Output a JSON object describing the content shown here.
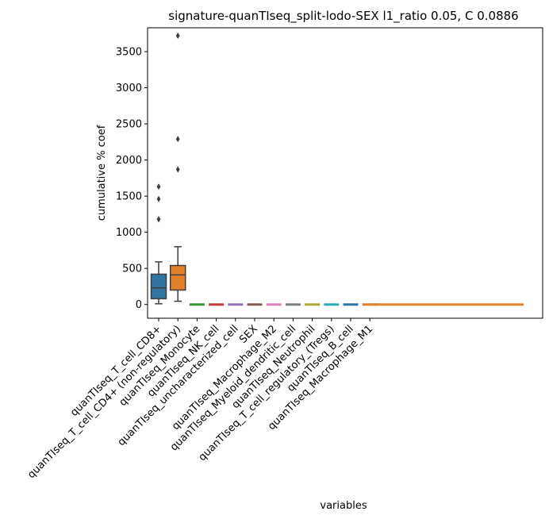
{
  "chart_data": {
    "type": "box",
    "title": "signature-quanTIseq_split-lodo-SEX l1_ratio 0.05, C 0.0886",
    "xlabel": "variables",
    "ylabel": "cumulative % coef",
    "ylim": [
      -190,
      3830
    ],
    "yticks": [
      0,
      500,
      1000,
      1500,
      2000,
      2500,
      3000,
      3500
    ],
    "grid": false,
    "categories": [
      "quanTIseq_T_cell_CD8+",
      "quanTIseq_T_cell_CD4+ (non-regulatory)",
      "quanTIseq_Monocyte",
      "quanTIseq_NK_cell",
      "quanTIseq_uncharacterized_cell",
      "SEX",
      "quanTIseq_Macrophage_M2",
      "quanTIseq_Myeloid_dendritic_cell",
      "quanTIseq_Neutrophil",
      "quanTIseq_T_cell_regulatory_(Tregs)",
      "quanTIseq_B_cell",
      "quanTIseq_Macrophage_M1"
    ],
    "boxes": [
      {
        "category": "quanTIseq_T_cell_CD8+",
        "color": "#3274a1",
        "whislo": 10,
        "q1": 80,
        "median": 230,
        "q3": 420,
        "whishi": 590,
        "fliers": [
          1180,
          1460,
          1630
        ]
      },
      {
        "category": "quanTIseq_T_cell_CD4+ (non-regulatory)",
        "color": "#e1812c",
        "whislo": 45,
        "q1": 200,
        "median": 410,
        "q3": 540,
        "whishi": 800,
        "fliers": [
          1870,
          2290,
          3720
        ]
      },
      {
        "category": "quanTIseq_Monocyte",
        "color": "#3a923a",
        "whislo": 0,
        "q1": 0,
        "median": 0,
        "q3": 0,
        "whishi": 0,
        "fliers": []
      },
      {
        "category": "quanTIseq_NK_cell",
        "color": "#c03d3e",
        "whislo": 0,
        "q1": 0,
        "median": 0,
        "q3": 0,
        "whishi": 0,
        "fliers": []
      },
      {
        "category": "quanTIseq_uncharacterized_cell",
        "color": "#9372b2",
        "whislo": 0,
        "q1": 0,
        "median": 0,
        "q3": 0,
        "whishi": 0,
        "fliers": []
      },
      {
        "category": "SEX",
        "color": "#845b53",
        "whislo": 0,
        "q1": 0,
        "median": 0,
        "q3": 0,
        "whishi": 0,
        "fliers": []
      },
      {
        "category": "quanTIseq_Macrophage_M2",
        "color": "#d684bd",
        "whislo": 0,
        "q1": 0,
        "median": 0,
        "q3": 0,
        "whishi": 0,
        "fliers": []
      },
      {
        "category": "quanTIseq_Myeloid_dendritic_cell",
        "color": "#7f7f7f",
        "whislo": 0,
        "q1": 0,
        "median": 0,
        "q3": 0,
        "whishi": 0,
        "fliers": []
      },
      {
        "category": "quanTIseq_Neutrophil",
        "color": "#a9aa35",
        "whislo": 0,
        "q1": 0,
        "median": 0,
        "q3": 0,
        "whishi": 0,
        "fliers": []
      },
      {
        "category": "quanTIseq_T_cell_regulatory_(Tregs)",
        "color": "#2eabb8",
        "whislo": 0,
        "q1": 0,
        "median": 0,
        "q3": 0,
        "whishi": 0,
        "fliers": []
      },
      {
        "category": "quanTIseq_B_cell",
        "color": "#3274a1",
        "whislo": 0,
        "q1": 0,
        "median": 0,
        "q3": 0,
        "whishi": 0,
        "fliers": []
      },
      {
        "category": "quanTIseq_Macrophage_M1",
        "color": "#e1812c",
        "whislo": 0,
        "q1": 0,
        "median": 0,
        "q3": 0,
        "whishi": 0,
        "fliers": []
      }
    ],
    "flat_line": {
      "color": "#e1812c",
      "value": 0
    }
  }
}
